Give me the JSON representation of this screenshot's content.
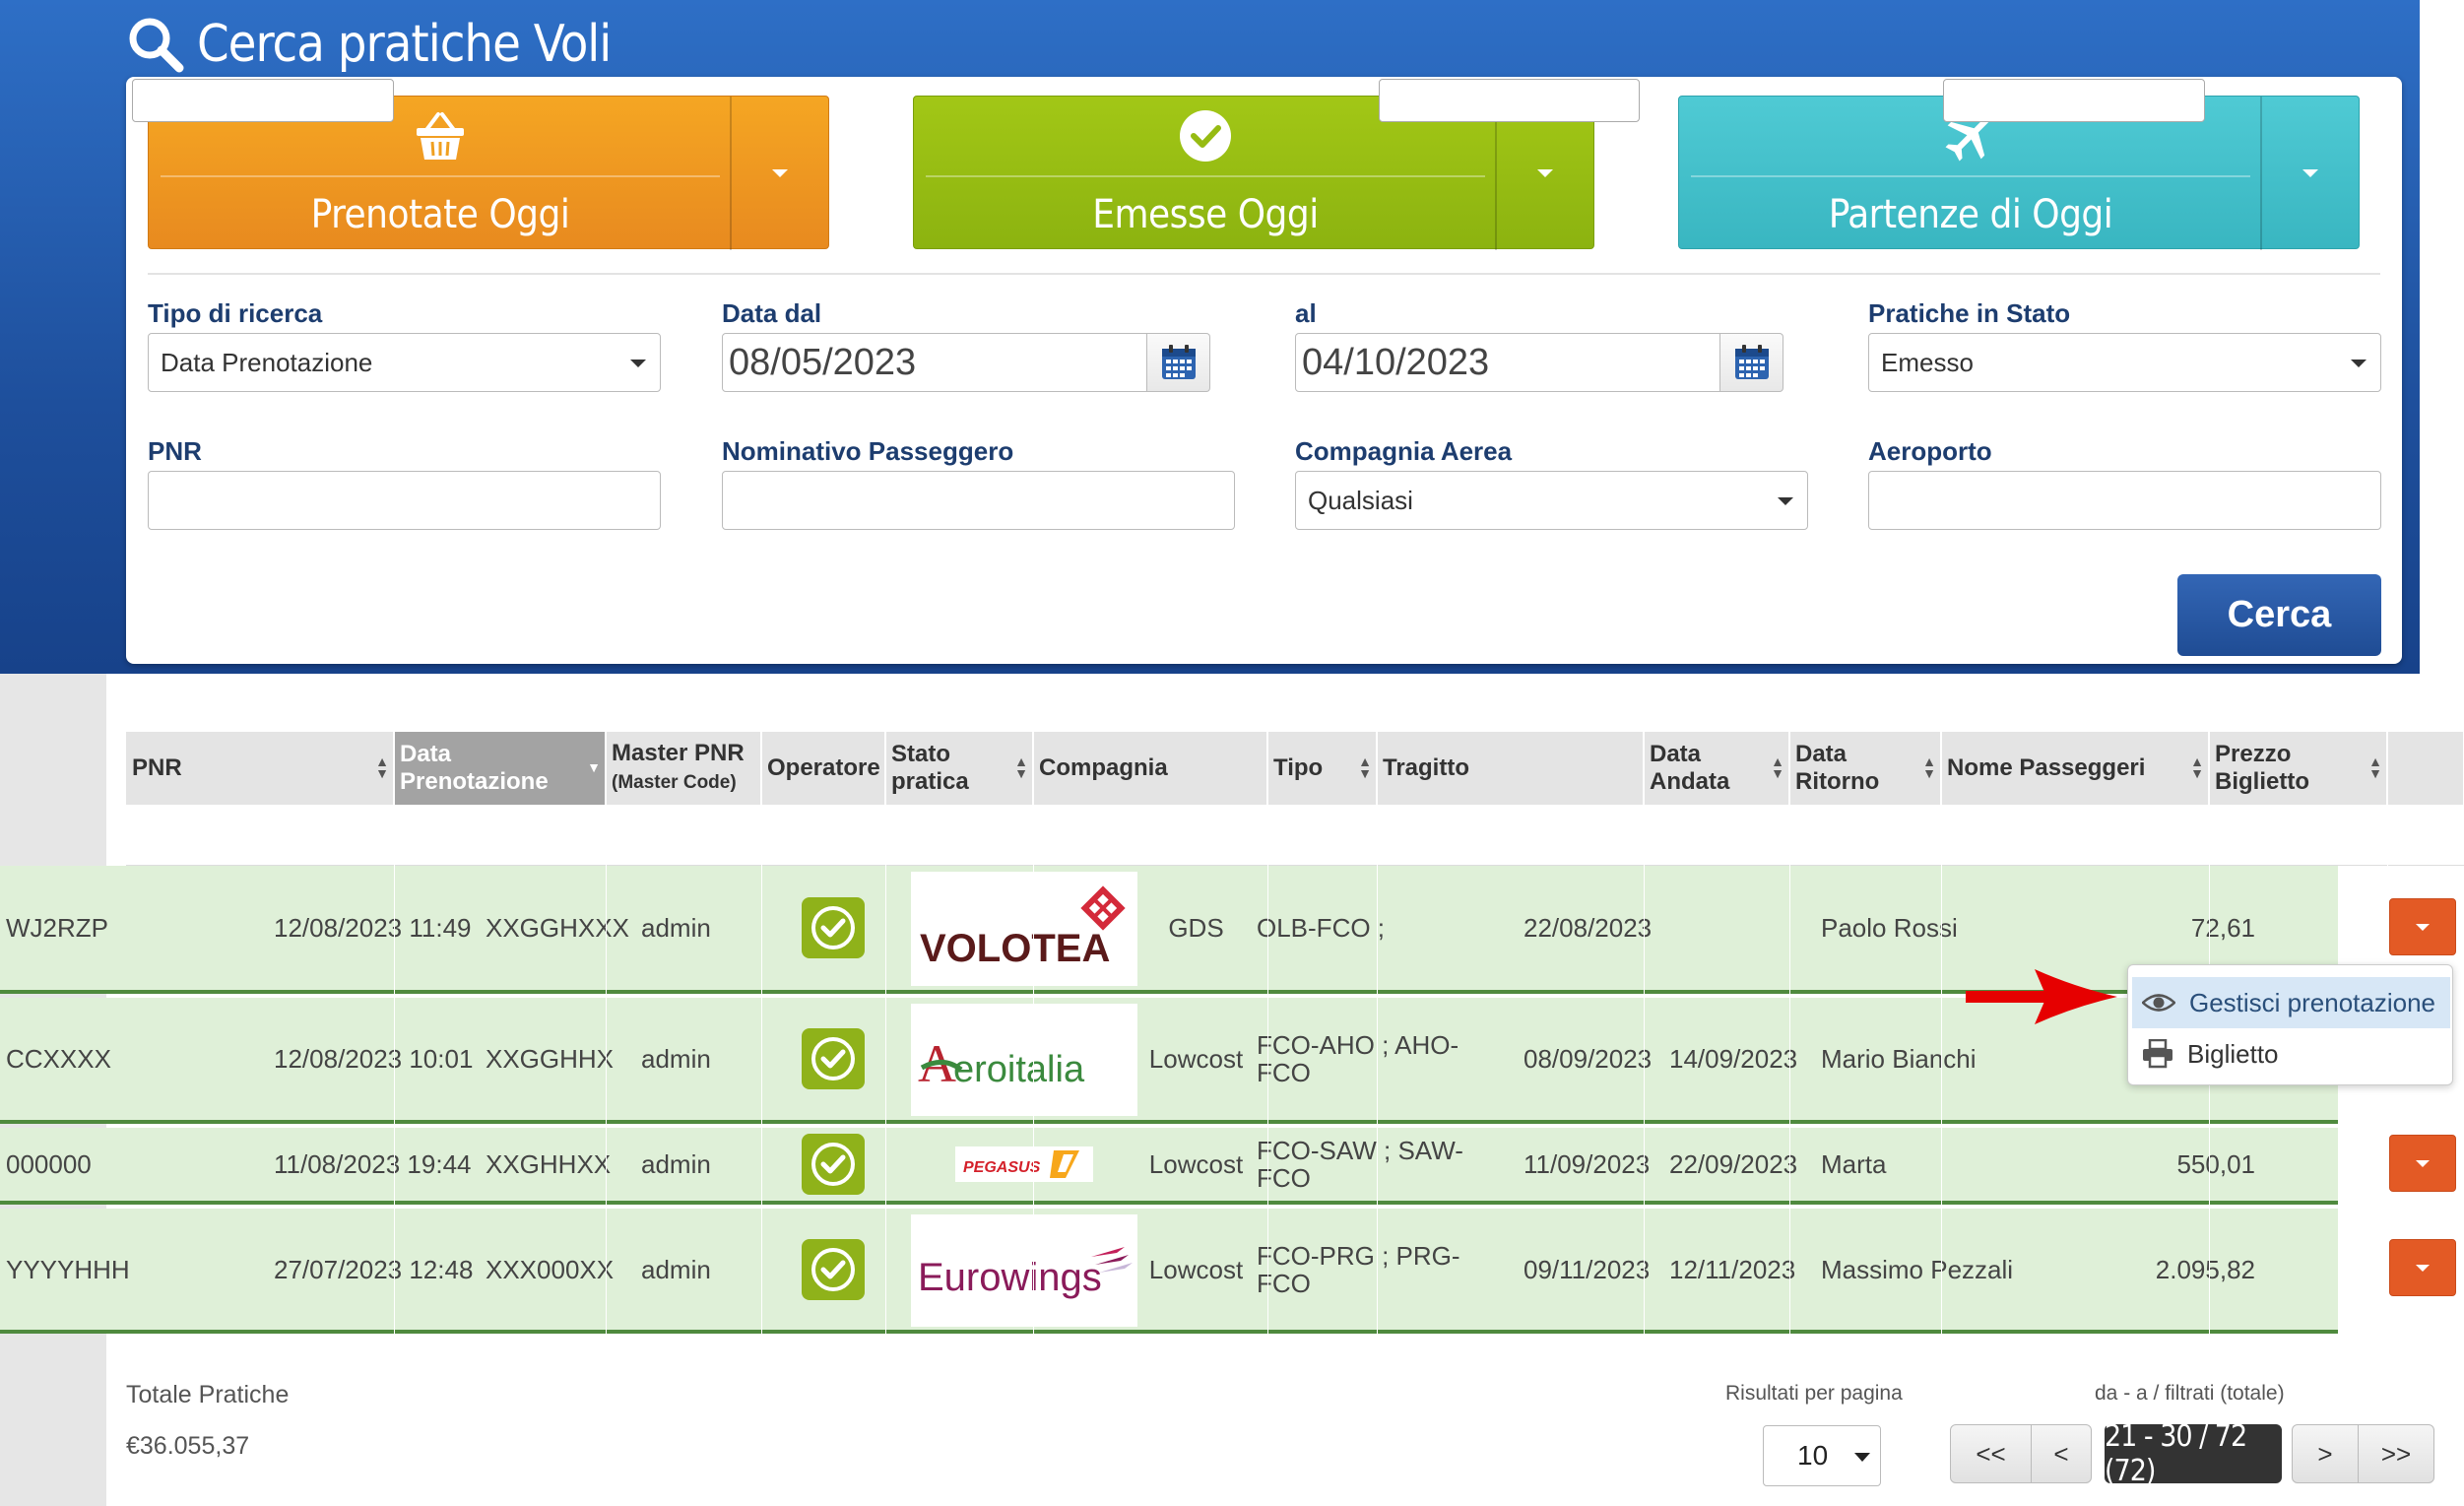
{
  "page_title": "Cerca pratiche Voli",
  "quick_buttons": {
    "booked_today": "Prenotate Oggi",
    "issued_today": "Emesse Oggi",
    "departures_today": "Partenze di Oggi"
  },
  "filters": {
    "search_type": {
      "label": "Tipo di ricerca",
      "value": "Data Prenotazione"
    },
    "date_from": {
      "label": "Data dal",
      "value": "08/05/2023"
    },
    "date_to": {
      "label": "al",
      "value": "04/10/2023"
    },
    "status": {
      "label": "Pratiche in Stato",
      "value": "Emesso"
    },
    "pnr": {
      "label": "PNR",
      "value": ""
    },
    "passenger": {
      "label": "Nominativo Passeggero",
      "value": ""
    },
    "airline": {
      "label": "Compagnia Aerea",
      "value": "Qualsiasi"
    },
    "airport": {
      "label": "Aeroporto",
      "value": ""
    },
    "search_button": "Cerca"
  },
  "table": {
    "headers": {
      "pnr": "PNR",
      "booking_date_1": "Data",
      "booking_date_2": "Prenotazione",
      "master_pnr_1": "Master PNR",
      "master_pnr_2": "(Master Code)",
      "operator": "Operatore",
      "status_1": "Stato",
      "status_2": "pratica",
      "airline": "Compagnia",
      "type": "Tipo",
      "route": "Tragitto",
      "dep_date_1": "Data",
      "dep_date_2": "Andata",
      "ret_date_1": "Data",
      "ret_date_2": "Ritorno",
      "passengers": "Nome Passeggeri",
      "price_1": "Prezzo",
      "price_2": "Biglietto"
    },
    "rows": [
      {
        "pnr": "WJ2RZP",
        "booking_date": "12/08/2023 11:49",
        "master_pnr": "XXGGHXXX",
        "operator": "admin",
        "airline_logo": "VOLOTEA",
        "type": "GDS",
        "route_1": "OLB-FCO ;",
        "route_2": "",
        "dep_date": "22/08/2023",
        "ret_date": "",
        "passengers": "Paolo Rossi",
        "price": "72,61"
      },
      {
        "pnr": "CCXXXX",
        "booking_date": "12/08/2023 10:01",
        "master_pnr": "XXGGHHX",
        "operator": "admin",
        "airline_logo": "Aeroitalia",
        "type": "Lowcost",
        "route_1": "FCO-AHO ; AHO-",
        "route_2": "FCO",
        "dep_date": "08/09/2023",
        "ret_date": "14/09/2023",
        "passengers": "Mario Bianchi",
        "price": ""
      },
      {
        "pnr": "000000",
        "booking_date": "11/08/2023 19:44",
        "master_pnr": "XXGHHXX",
        "operator": "admin",
        "airline_logo": "PEGASUS",
        "type": "Lowcost",
        "route_1": "FCO-SAW ; SAW-",
        "route_2": "FCO",
        "dep_date": "11/09/2023",
        "ret_date": "22/09/2023",
        "passengers": "Marta",
        "price": "550,01"
      },
      {
        "pnr": "YYYYHHH",
        "booking_date": "27/07/2023 12:48",
        "master_pnr": "XXX000XX",
        "operator": "admin",
        "airline_logo": "Eurowings",
        "type": "Lowcost",
        "route_1": "FCO-PRG ; PRG-",
        "route_2": "FCO",
        "dep_date": "09/11/2023",
        "ret_date": "12/11/2023",
        "passengers": "Massimo Pezzali",
        "price": "2.095,82"
      }
    ]
  },
  "context_menu": {
    "manage": "Gestisci prenotazione",
    "ticket": "Biglietto"
  },
  "footer": {
    "total_label": "Totale Pratiche",
    "total_value": "€36.055,37",
    "per_page_label": "Risultati per pagina",
    "per_page_value": "10",
    "range_label": "da - a / filtrati (totale)",
    "range_value": "21 - 30 / 72 (72)",
    "first": "<<",
    "prev": "<",
    "next": ">",
    "last": ">>"
  },
  "colors": {
    "header_blue": "#1e4f9c",
    "orange": "#f5a623",
    "green": "#a2c716",
    "teal": "#4fcad4",
    "row_green": "#dff0d8",
    "action_red": "#e35a25",
    "arrow_red": "#e60000"
  }
}
